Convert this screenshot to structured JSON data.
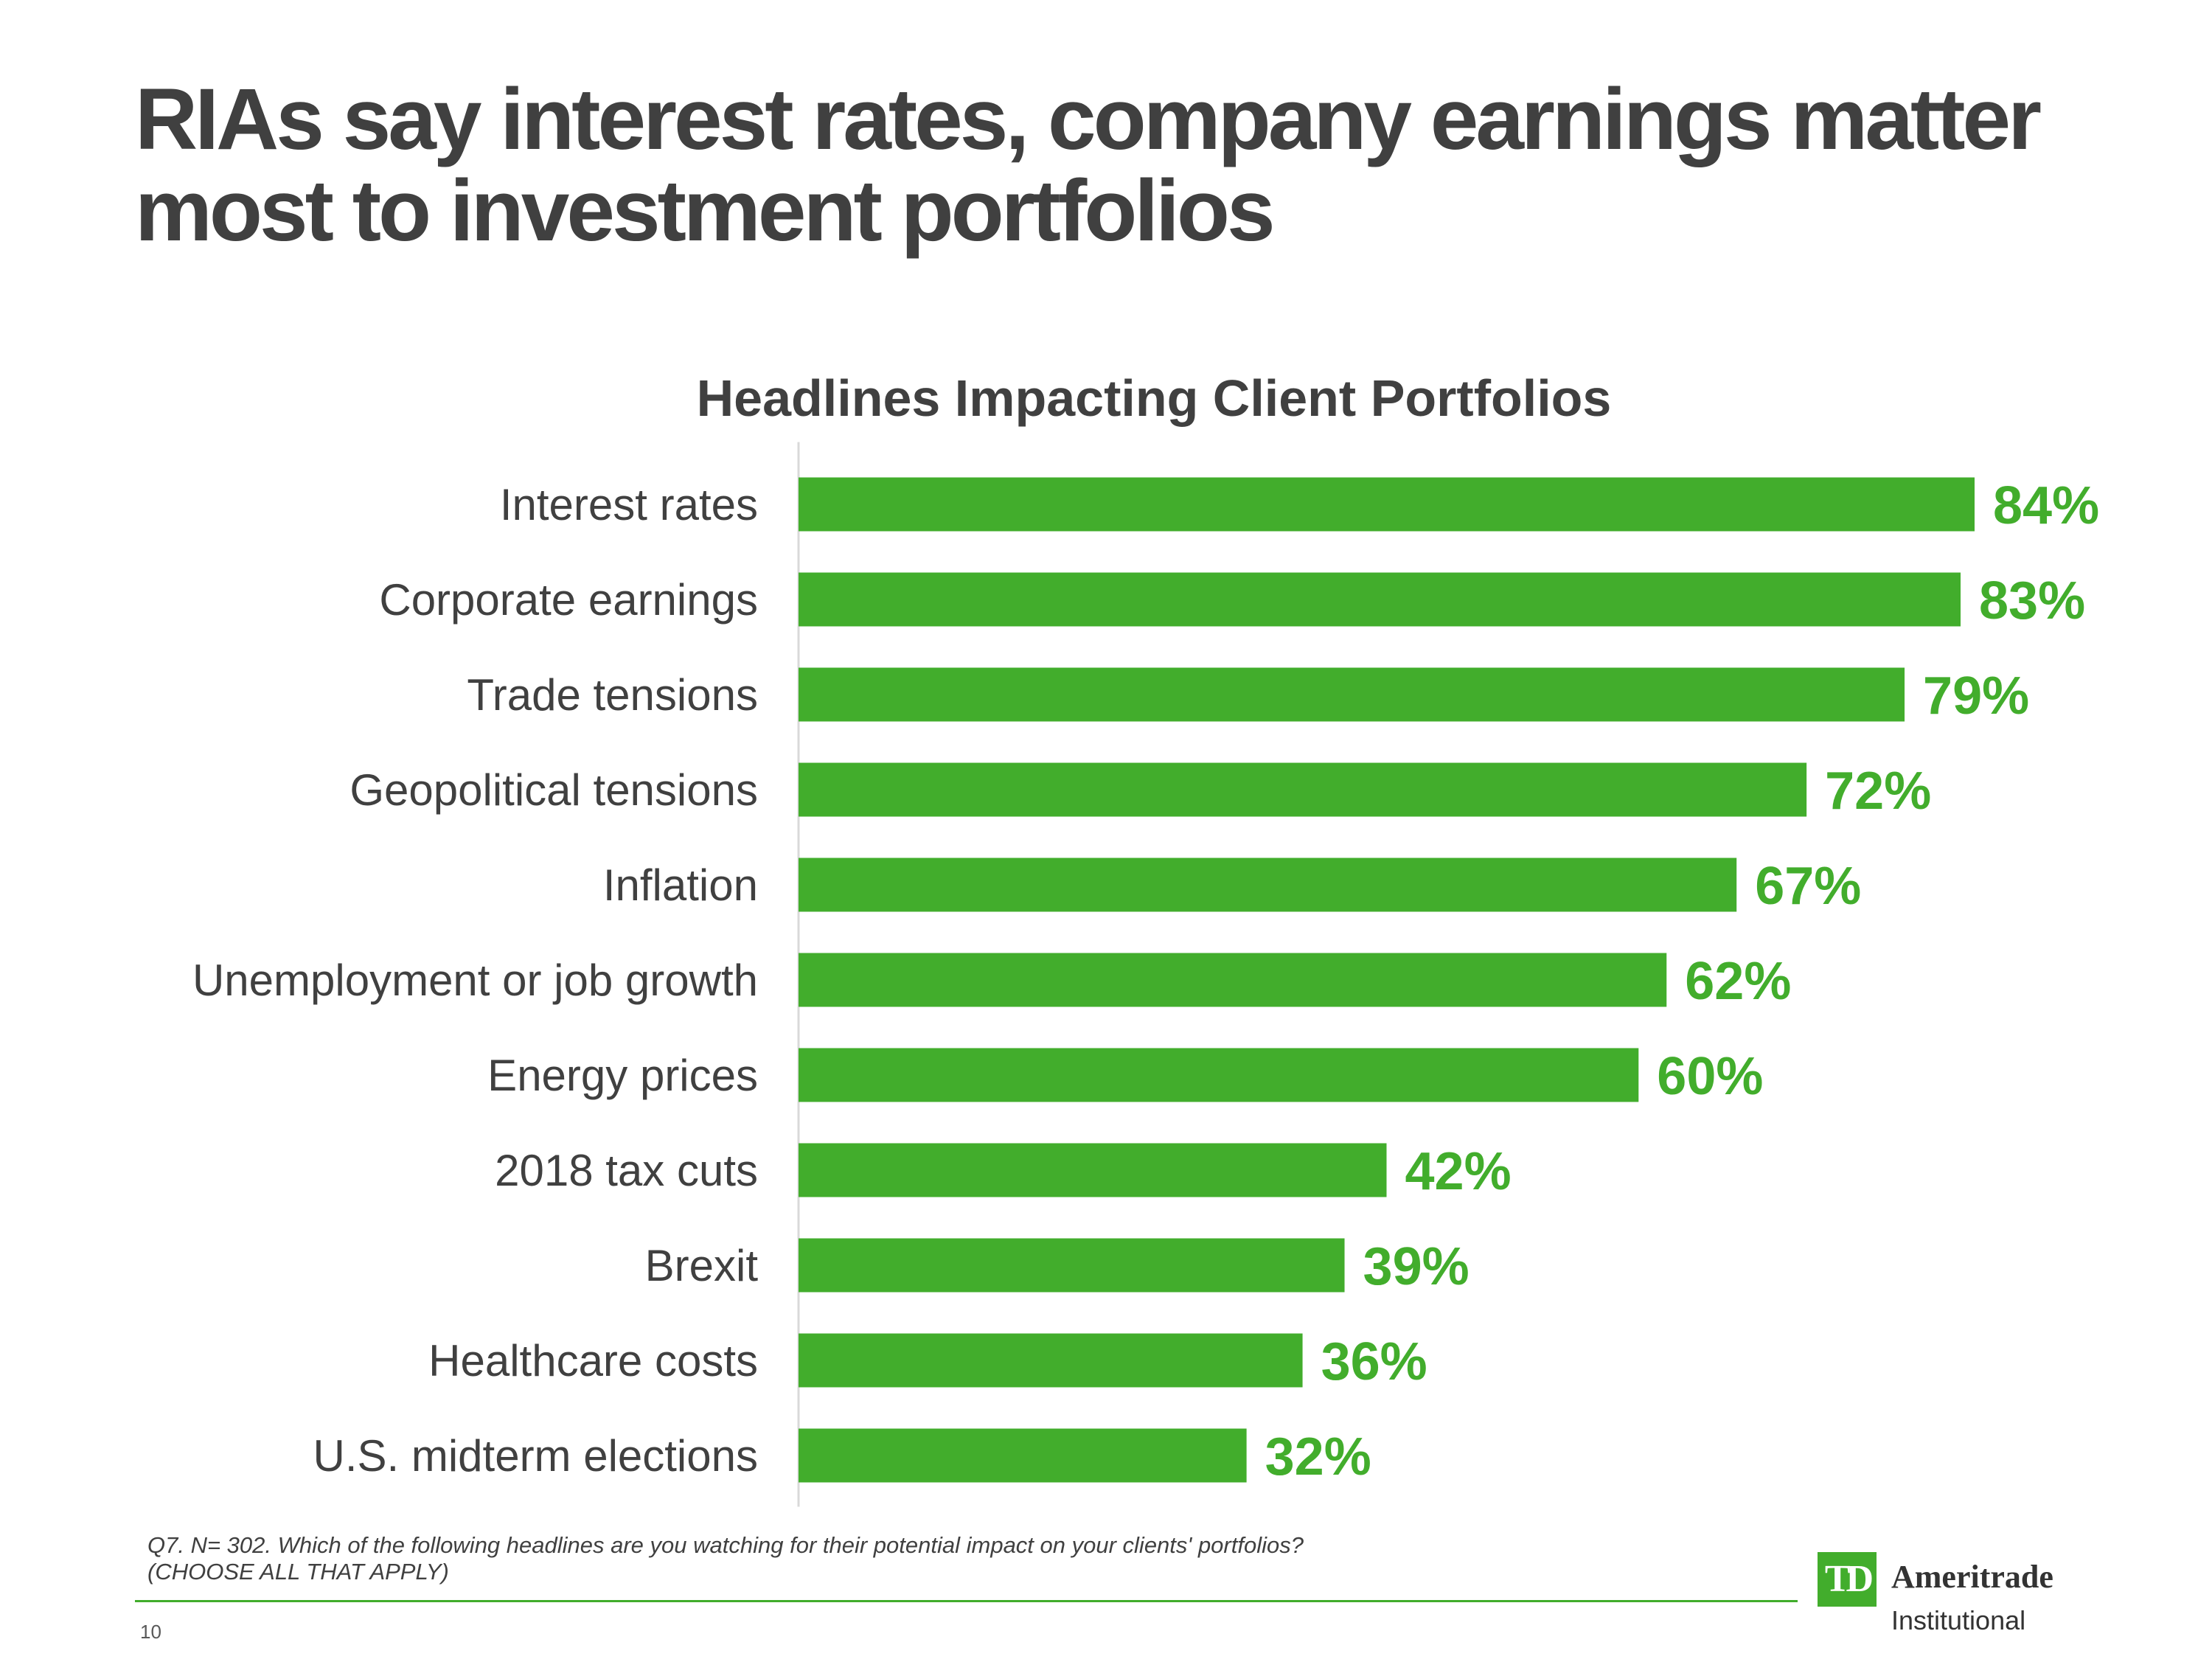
{
  "slide": {
    "title_line1": "RIAs say interest rates, company earnings matter",
    "title_line2": "most to investment portfolios",
    "footnote_line1": "Q7. N= 302. Which of the following headlines are you watching for their potential impact on your clients' portfolios?",
    "footnote_line2": "(CHOOSE ALL THAT APPLY)",
    "page_number": "10"
  },
  "logo": {
    "mark": "TD",
    "name": "Ameritrade",
    "sub": "Institutional"
  },
  "colors": {
    "bar": "#42ad2c",
    "text": "#404040",
    "axis": "#d9d9d9"
  },
  "chart_data": {
    "type": "bar",
    "orientation": "horizontal",
    "title": "Headlines Impacting Client Portfolios",
    "categories": [
      "Interest rates",
      "Corporate earnings",
      "Trade tensions",
      "Geopolitical tensions",
      "Inflation",
      "Unemployment or job growth",
      "Energy prices",
      "2018 tax cuts",
      "Brexit",
      "Healthcare costs",
      "U.S. midterm elections"
    ],
    "values": [
      84,
      83,
      79,
      72,
      67,
      62,
      60,
      42,
      39,
      36,
      32
    ],
    "value_labels": [
      "84%",
      "83%",
      "79%",
      "72%",
      "67%",
      "62%",
      "60%",
      "42%",
      "39%",
      "36%",
      "32%"
    ],
    "xlabel": "",
    "ylabel": "",
    "xlim": [
      0,
      84
    ],
    "grid": false,
    "legend": "none"
  }
}
